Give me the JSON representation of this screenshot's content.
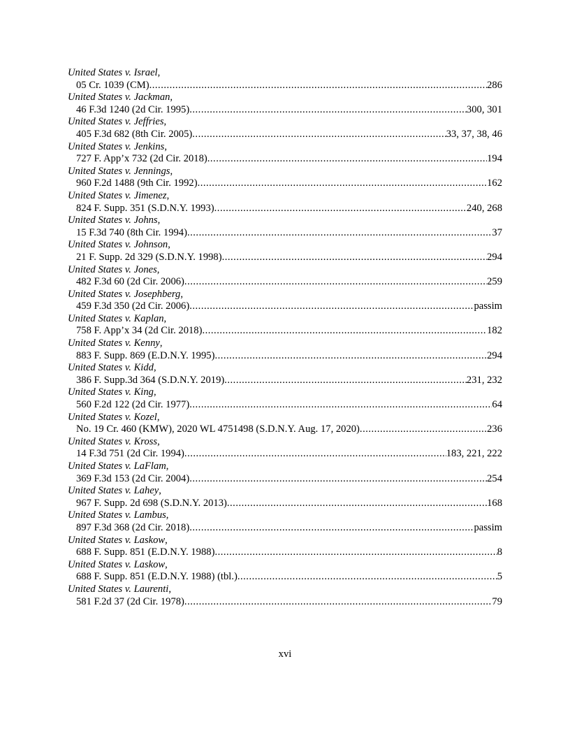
{
  "entries": [
    {
      "name": "United States v. Israel",
      "cite": "05 Cr. 1039 (CM)",
      "pages": "286"
    },
    {
      "name": "United States v. Jackman,",
      "cite": "46 F.3d 1240 (2d Cir. 1995)",
      "pages": "300, 301"
    },
    {
      "name": "United States v. Jeffries",
      "cite": "405 F.3d 682 (8th Cir. 2005)",
      "pages": "33, 37, 38, 46"
    },
    {
      "name": "United States v. Jenkins",
      "cite": "727 F. App’x 732 (2d Cir. 2018)",
      "pages": "194"
    },
    {
      "name": "United States v. Jennings",
      "cite": "960 F.2d 1488 (9th Cir. 1992)",
      "pages": "162"
    },
    {
      "name": "United States v. Jimenez",
      "cite": "824 F. Supp. 351 (S.D.N.Y. 1993)",
      "pages": "240, 268"
    },
    {
      "name": "United States v. Johns",
      "cite": "15 F.3d 740 (8th Cir. 1994)",
      "pages": "37"
    },
    {
      "name": "United States v. Johnson",
      "cite": "21 F. Supp. 2d 329 (S.D.N.Y. 1998)",
      "pages": "294"
    },
    {
      "name": "United States v. Jones",
      "cite": "482 F.3d 60 (2d Cir. 2006)",
      "pages": "259"
    },
    {
      "name": "United States v. Josephberg",
      "cite": "459 F.3d 350 (2d Cir. 2006)",
      "pages": "passim"
    },
    {
      "name": "United States v. Kaplan",
      "cite": "758 F. App’x 34 (2d Cir. 2018)",
      "pages": "182"
    },
    {
      "name": "United States v. Kenny",
      "cite": "883 F. Supp. 869 (E.D.N.Y. 1995)",
      "pages": "294"
    },
    {
      "name": "United States v. Kidd",
      "cite": "386 F. Supp.3d 364 (S.D.N.Y. 2019)",
      "pages": "231, 232"
    },
    {
      "name": "United States v. King",
      "cite": "560 F.2d 122 (2d Cir. 1977)",
      "pages": "64"
    },
    {
      "name": "United States v. Kozel",
      "cite": "No. 19 Cr. 460 (KMW), 2020 WL 4751498 (S.D.N.Y. Aug. 17, 2020)",
      "pages": "236"
    },
    {
      "name": "United States v. Kross",
      "cite": "14 F.3d 751 (2d Cir. 1994)",
      "pages": "183, 221, 222"
    },
    {
      "name": "United States v. LaFlam",
      "cite": "369 F.3d 153 (2d Cir. 2004)",
      "pages": "254"
    },
    {
      "name": "United States v. Lahey",
      "cite": "967 F. Supp. 2d 698 (S.D.N.Y. 2013)",
      "pages": "168"
    },
    {
      "name": "United States v. Lambus",
      "cite": "897 F.3d 368 (2d Cir. 2018)",
      "pages": "passim"
    },
    {
      "name": "United States v. Laskow",
      "cite": "688 F. Supp. 851 (E.D.N.Y. 1988)",
      "pages": "8"
    },
    {
      "name": "United States v. Laskow",
      "cite": "688 F. Supp. 851 (E.D.N.Y. 1988) (tbl.)",
      "pages": "5"
    },
    {
      "name": "United States v. Laurenti",
      "cite": "581 F.2d 37 (2d Cir. 1978)",
      "pages": "79"
    }
  ],
  "page_number": "xvi"
}
